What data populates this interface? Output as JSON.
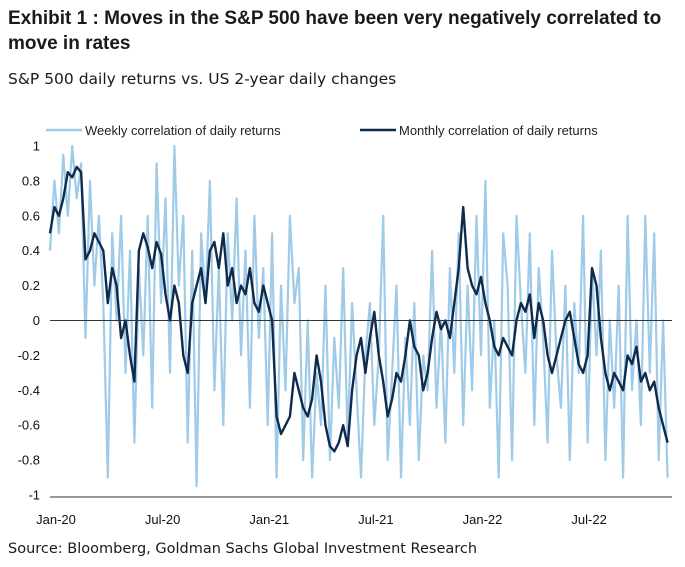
{
  "header": {
    "title": "Exhibit 1 : Moves in the S&P 500 have been very negatively correlated to move in rates",
    "subtitle": "S&P 500 daily returns vs. US 2-year daily changes"
  },
  "footer": {
    "source": "Source: Bloomberg, Goldman Sachs Global Investment Research"
  },
  "colors": {
    "weekly": "#9fcbe9",
    "monthly": "#0f2a4a",
    "axis": "#333333"
  },
  "chart_data": {
    "type": "line",
    "xlabel": "",
    "ylabel": "",
    "ylim": [
      -1,
      1
    ],
    "yticks": [
      "1",
      "0.8",
      "0.6",
      "0.4",
      "0.2",
      "0",
      "-0.2",
      "-0.4",
      "-0.6",
      "-0.8",
      "-1"
    ],
    "xticks": [
      "Jan-20",
      "Jul-20",
      "Jan-21",
      "Jul-21",
      "Jan-22",
      "Jul-22"
    ],
    "xlim_months": [
      0,
      35
    ],
    "legend_position": "top",
    "series": [
      {
        "name": "Weekly correlation of daily returns",
        "style": "light",
        "x": [
          0,
          0.25,
          0.5,
          0.75,
          1,
          1.25,
          1.5,
          1.75,
          2,
          2.25,
          2.5,
          2.75,
          3,
          3.25,
          3.5,
          3.75,
          4,
          4.25,
          4.5,
          4.75,
          5,
          5.25,
          5.5,
          5.75,
          6,
          6.25,
          6.5,
          6.75,
          7,
          7.25,
          7.5,
          7.75,
          8,
          8.25,
          8.5,
          8.75,
          9,
          9.25,
          9.5,
          9.75,
          10,
          10.25,
          10.5,
          10.75,
          11,
          11.25,
          11.5,
          11.75,
          12,
          12.25,
          12.5,
          12.75,
          13,
          13.25,
          13.5,
          13.75,
          14,
          14.25,
          14.5,
          14.75,
          15,
          15.25,
          15.5,
          15.75,
          16,
          16.25,
          16.5,
          16.75,
          17,
          17.25,
          17.5,
          17.75,
          18,
          18.25,
          18.5,
          18.75,
          19,
          19.25,
          19.5,
          19.75,
          20,
          20.25,
          20.5,
          20.75,
          21,
          21.25,
          21.5,
          21.75,
          22,
          22.25,
          22.5,
          22.75,
          23,
          23.25,
          23.5,
          23.75,
          24,
          24.25,
          24.5,
          24.75,
          25,
          25.25,
          25.5,
          25.75,
          26,
          26.25,
          26.5,
          26.75,
          27,
          27.25,
          27.5,
          27.75,
          28,
          28.25,
          28.5,
          28.75,
          29,
          29.25,
          29.5,
          29.75,
          30,
          30.25,
          30.5,
          30.75,
          31,
          31.25,
          31.5,
          31.75,
          32,
          32.25,
          32.5,
          32.75,
          33,
          33.25,
          33.5,
          33.75,
          34,
          34.25,
          34.5,
          34.75
        ],
        "values": [
          0.4,
          0.8,
          0.5,
          0.95,
          0.6,
          1.0,
          0.7,
          0.9,
          -0.1,
          0.8,
          0.2,
          0.6,
          0.1,
          -0.9,
          0.5,
          0.0,
          0.6,
          -0.3,
          0.4,
          -0.7,
          0.3,
          -0.2,
          0.6,
          -0.5,
          0.9,
          0.1,
          0.7,
          -0.3,
          1.0,
          0.2,
          0.6,
          -0.7,
          0.4,
          -0.95,
          0.5,
          0.1,
          0.8,
          -0.4,
          0.3,
          -0.6,
          0.5,
          0.0,
          0.7,
          -0.2,
          0.4,
          -0.5,
          0.6,
          -0.1,
          0.3,
          -0.6,
          0.5,
          -0.9,
          0.2,
          -0.4,
          0.6,
          0.1,
          0.3,
          -0.8,
          0.0,
          -0.9,
          -0.3,
          -0.6,
          0.2,
          -0.8,
          -0.1,
          -0.5,
          0.3,
          -0.7,
          0.1,
          -0.4,
          -0.9,
          -0.2,
          0.1,
          -0.6,
          -0.2,
          0.6,
          -0.8,
          -0.3,
          0.2,
          -0.9,
          -0.1,
          -0.6,
          0.1,
          -0.8,
          -0.2,
          -0.4,
          0.4,
          -0.5,
          0.0,
          -0.7,
          0.3,
          -0.3,
          0.5,
          -0.6,
          0.2,
          -0.4,
          0.6,
          -0.2,
          0.8,
          -0.5,
          0.0,
          -0.9,
          0.5,
          0.2,
          -0.8,
          0.6,
          0.1,
          -0.3,
          0.5,
          -0.6,
          0.3,
          -0.1,
          -0.7,
          0.4,
          -0.2,
          -0.5,
          0.2,
          -0.8,
          0.1,
          -0.3,
          0.6,
          -0.7,
          0.3,
          -0.2,
          0.4,
          -0.8,
          0.0,
          -0.5,
          0.2,
          -0.9,
          0.6,
          -0.4,
          0.0,
          -0.6,
          0.6,
          -0.3,
          0.5,
          -0.8,
          0.0,
          -0.9
        ]
      },
      {
        "name": "Monthly correlation of daily returns",
        "style": "dark",
        "x": [
          0,
          0.25,
          0.5,
          0.75,
          1,
          1.25,
          1.5,
          1.75,
          2,
          2.25,
          2.5,
          2.75,
          3,
          3.25,
          3.5,
          3.75,
          4,
          4.25,
          4.5,
          4.75,
          5,
          5.25,
          5.5,
          5.75,
          6,
          6.25,
          6.5,
          6.75,
          7,
          7.25,
          7.5,
          7.75,
          8,
          8.25,
          8.5,
          8.75,
          9,
          9.25,
          9.5,
          9.75,
          10,
          10.25,
          10.5,
          10.75,
          11,
          11.25,
          11.5,
          11.75,
          12,
          12.25,
          12.5,
          12.75,
          13,
          13.25,
          13.5,
          13.75,
          14,
          14.25,
          14.5,
          14.75,
          15,
          15.25,
          15.5,
          15.75,
          16,
          16.25,
          16.5,
          16.75,
          17,
          17.25,
          17.5,
          17.75,
          18,
          18.25,
          18.5,
          18.75,
          19,
          19.25,
          19.5,
          19.75,
          20,
          20.25,
          20.5,
          20.75,
          21,
          21.25,
          21.5,
          21.75,
          22,
          22.25,
          22.5,
          22.75,
          23,
          23.25,
          23.5,
          23.75,
          24,
          24.25,
          24.5,
          24.75,
          25,
          25.25,
          25.5,
          25.75,
          26,
          26.25,
          26.5,
          26.75,
          27,
          27.25,
          27.5,
          27.75,
          28,
          28.25,
          28.5,
          28.75,
          29,
          29.25,
          29.5,
          29.75,
          30,
          30.25,
          30.5,
          30.75,
          31,
          31.25,
          31.5,
          31.75,
          32,
          32.25,
          32.5,
          32.75,
          33,
          33.25,
          33.5,
          33.75,
          34,
          34.25,
          34.5,
          34.75
        ],
        "values": [
          0.5,
          0.65,
          0.6,
          0.7,
          0.85,
          0.82,
          0.88,
          0.85,
          0.35,
          0.4,
          0.5,
          0.45,
          0.4,
          0.1,
          0.3,
          0.2,
          -0.1,
          0.0,
          -0.2,
          -0.35,
          0.4,
          0.5,
          0.42,
          0.3,
          0.45,
          0.38,
          0.15,
          0.0,
          0.2,
          0.1,
          -0.2,
          -0.3,
          0.1,
          0.2,
          0.3,
          0.1,
          0.4,
          0.45,
          0.3,
          0.5,
          0.2,
          0.3,
          0.1,
          0.2,
          0.15,
          0.3,
          0.1,
          0.05,
          0.2,
          0.1,
          0.0,
          -0.55,
          -0.65,
          -0.6,
          -0.55,
          -0.3,
          -0.4,
          -0.5,
          -0.55,
          -0.45,
          -0.2,
          -0.35,
          -0.6,
          -0.72,
          -0.75,
          -0.7,
          -0.6,
          -0.72,
          -0.4,
          -0.2,
          -0.1,
          -0.3,
          -0.1,
          0.05,
          -0.2,
          -0.35,
          -0.55,
          -0.45,
          -0.3,
          -0.35,
          -0.2,
          0.0,
          -0.15,
          -0.2,
          -0.4,
          -0.3,
          -0.1,
          0.05,
          -0.05,
          0.0,
          -0.1,
          0.1,
          0.3,
          0.65,
          0.3,
          0.2,
          0.15,
          0.25,
          0.1,
          0.0,
          -0.15,
          -0.2,
          -0.1,
          -0.15,
          -0.2,
          0.0,
          0.1,
          0.05,
          0.15,
          -0.1,
          0.1,
          0.0,
          -0.2,
          -0.3,
          -0.2,
          -0.1,
          0.0,
          0.05,
          -0.1,
          -0.25,
          -0.3,
          -0.2,
          0.3,
          0.2,
          -0.1,
          -0.3,
          -0.4,
          -0.3,
          -0.35,
          -0.4,
          -0.2,
          -0.25,
          -0.15,
          -0.35,
          -0.3,
          -0.4,
          -0.35,
          -0.5,
          -0.6,
          -0.7
        ]
      }
    ]
  }
}
